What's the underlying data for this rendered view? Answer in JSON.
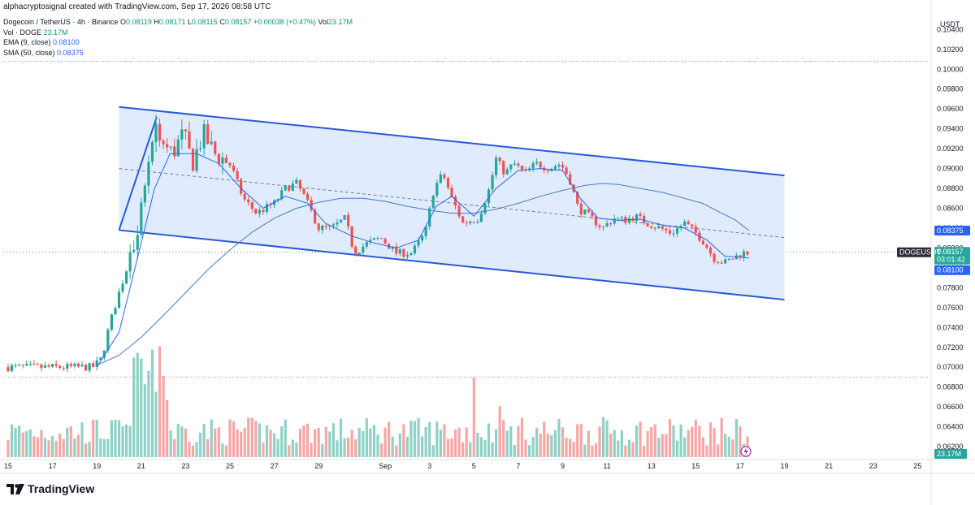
{
  "header": {
    "credit": "alphacryptosignal created with TradingView.com, Sep 17, 2026 08:58 UTC",
    "symbol": "Dogecoin / TetherUS · 4h · Binance",
    "o_label": "O",
    "o_value": "0.08119",
    "h_label": "H",
    "h_value": "0.08171",
    "l_label": "L",
    "l_value": "0.08115",
    "c_label": "C",
    "c_value": "0.08157",
    "change": "+0.00038 (+0.47%)",
    "vol_label": "Vol",
    "vol_value": "23.17M",
    "ind_vol_label": "Vol · DOGE",
    "ind_vol_value": "23.17M",
    "ema_label": "EMA (9, close)",
    "ema_value": "0.08100",
    "sma_label": "SMA (50, close)",
    "sma_value": "0.08375"
  },
  "currency": "USDT",
  "logo_text": "TradingView",
  "price_tags": {
    "sma": "0.08375",
    "symbol": "DOGEUSDT",
    "price": "0.08157",
    "countdown": "03:01:42",
    "ema": "0.08100",
    "volume": "23.17M"
  },
  "colors": {
    "up": "#26a69a",
    "down": "#ef5350",
    "vol_up": "#8ed1c6",
    "vol_down": "#f5a7a5",
    "channel_line": "#2959d9",
    "channel_fill": "#ddeafd",
    "ema": "#2962ff",
    "sma": "#4a78c6",
    "price_tag": "#26a69a",
    "ema_tag": "#2962ff",
    "sma_tag": "#2962ff"
  },
  "chart_data": {
    "type": "candlestick",
    "title": "Dogecoin / TetherUS · 4h · Binance",
    "y_ticks": [
      "0.06200",
      "0.06400",
      "0.06600",
      "0.06800",
      "0.07000",
      "0.07200",
      "0.07400",
      "0.07600",
      "0.07800",
      "0.08000",
      "0.08200",
      "0.08400",
      "0.08600",
      "0.08800",
      "0.09000",
      "0.09200",
      "0.09400",
      "0.09600",
      "0.09800",
      "0.10000",
      "0.10200",
      "0.10400"
    ],
    "ylim": [
      0.0607,
      0.1055
    ],
    "x_ticks": [
      {
        "label": "15",
        "t": 0
      },
      {
        "label": "17",
        "t": 2
      },
      {
        "label": "19",
        "t": 4
      },
      {
        "label": "21",
        "t": 6
      },
      {
        "label": "23",
        "t": 8
      },
      {
        "label": "25",
        "t": 10
      },
      {
        "label": "27",
        "t": 12
      },
      {
        "label": "29",
        "t": 14
      },
      {
        "label": "Sep",
        "t": 17
      },
      {
        "label": "3",
        "t": 19
      },
      {
        "label": "5",
        "t": 21
      },
      {
        "label": "7",
        "t": 23
      },
      {
        "label": "9",
        "t": 25
      },
      {
        "label": "11",
        "t": 27
      },
      {
        "label": "13",
        "t": 29
      },
      {
        "label": "15",
        "t": 31
      },
      {
        "label": "17",
        "t": 33
      },
      {
        "label": "19",
        "t": 35
      },
      {
        "label": "21",
        "t": 37
      },
      {
        "label": "23",
        "t": 39
      },
      {
        "label": "25",
        "t": 41
      }
    ],
    "close_anchors": [
      [
        0,
        0.07
      ],
      [
        3.8,
        0.07
      ],
      [
        4.2,
        0.0708
      ],
      [
        4.6,
        0.0745
      ],
      [
        5.0,
        0.0775
      ],
      [
        5.5,
        0.081
      ],
      [
        6.0,
        0.086
      ],
      [
        6.4,
        0.092
      ],
      [
        6.7,
        0.0945
      ],
      [
        7.0,
        0.0925
      ],
      [
        7.4,
        0.0915
      ],
      [
        7.9,
        0.0935
      ],
      [
        8.3,
        0.0905
      ],
      [
        8.8,
        0.0935
      ],
      [
        9.3,
        0.0915
      ],
      [
        10.0,
        0.0905
      ],
      [
        10.6,
        0.087
      ],
      [
        11.2,
        0.0855
      ],
      [
        12.0,
        0.0865
      ],
      [
        12.5,
        0.088
      ],
      [
        13.0,
        0.0885
      ],
      [
        13.4,
        0.087
      ],
      [
        14.0,
        0.084
      ],
      [
        14.6,
        0.084
      ],
      [
        15.2,
        0.085
      ],
      [
        15.6,
        0.0815
      ],
      [
        16.2,
        0.0825
      ],
      [
        16.8,
        0.083
      ],
      [
        17.5,
        0.0815
      ],
      [
        18.2,
        0.0815
      ],
      [
        18.8,
        0.0835
      ],
      [
        19.2,
        0.088
      ],
      [
        19.6,
        0.0895
      ],
      [
        20.0,
        0.087
      ],
      [
        20.5,
        0.0845
      ],
      [
        21.2,
        0.085
      ],
      [
        21.7,
        0.088
      ],
      [
        22.0,
        0.091
      ],
      [
        22.4,
        0.0895
      ],
      [
        22.8,
        0.0905
      ],
      [
        23.3,
        0.0895
      ],
      [
        23.8,
        0.0905
      ],
      [
        24.4,
        0.09
      ],
      [
        24.9,
        0.0905
      ],
      [
        25.3,
        0.089
      ],
      [
        25.7,
        0.086
      ],
      [
        26.3,
        0.085
      ],
      [
        26.8,
        0.084
      ],
      [
        27.3,
        0.085
      ],
      [
        27.8,
        0.0848
      ],
      [
        28.3,
        0.0852
      ],
      [
        28.8,
        0.0845
      ],
      [
        29.4,
        0.084
      ],
      [
        29.9,
        0.0835
      ],
      [
        30.5,
        0.0845
      ],
      [
        31.0,
        0.0835
      ],
      [
        31.4,
        0.0825
      ],
      [
        31.8,
        0.081
      ],
      [
        32.3,
        0.0805
      ],
      [
        32.7,
        0.081
      ],
      [
        33.1,
        0.0815
      ],
      [
        33.4,
        0.08157
      ]
    ],
    "ema": [
      [
        4.0,
        0.07
      ],
      [
        5.0,
        0.0735
      ],
      [
        6.0,
        0.0825
      ],
      [
        6.6,
        0.088
      ],
      [
        7.3,
        0.0915
      ],
      [
        8.5,
        0.0915
      ],
      [
        9.5,
        0.0905
      ],
      [
        10.5,
        0.088
      ],
      [
        11.5,
        0.086
      ],
      [
        12.5,
        0.0872
      ],
      [
        13.5,
        0.0865
      ],
      [
        14.3,
        0.0845
      ],
      [
        15.5,
        0.0832
      ],
      [
        16.5,
        0.0825
      ],
      [
        17.5,
        0.082
      ],
      [
        18.5,
        0.0828
      ],
      [
        19.3,
        0.0862
      ],
      [
        20.0,
        0.0872
      ],
      [
        21.0,
        0.0852
      ],
      [
        22.0,
        0.088
      ],
      [
        23.0,
        0.0898
      ],
      [
        24.0,
        0.09
      ],
      [
        25.0,
        0.0898
      ],
      [
        25.8,
        0.087
      ],
      [
        26.6,
        0.085
      ],
      [
        27.5,
        0.0848
      ],
      [
        28.5,
        0.0849
      ],
      [
        29.5,
        0.0843
      ],
      [
        30.5,
        0.084
      ],
      [
        31.5,
        0.0828
      ],
      [
        32.3,
        0.0812
      ],
      [
        33.4,
        0.081
      ]
    ],
    "sma": [
      [
        4.0,
        0.0702
      ],
      [
        5.0,
        0.0712
      ],
      [
        6.0,
        0.073
      ],
      [
        7.0,
        0.0752
      ],
      [
        8.0,
        0.0775
      ],
      [
        9.0,
        0.0798
      ],
      [
        10.0,
        0.0818
      ],
      [
        11.0,
        0.0836
      ],
      [
        12.0,
        0.085
      ],
      [
        13.0,
        0.086
      ],
      [
        14.0,
        0.0866
      ],
      [
        15.0,
        0.087
      ],
      [
        16.0,
        0.087
      ],
      [
        17.0,
        0.0867
      ],
      [
        18.0,
        0.0862
      ],
      [
        19.0,
        0.0858
      ],
      [
        20.0,
        0.0855
      ],
      [
        21.0,
        0.0855
      ],
      [
        22.0,
        0.0859
      ],
      [
        23.0,
        0.0865
      ],
      [
        24.0,
        0.0872
      ],
      [
        25.0,
        0.0878
      ],
      [
        26.0,
        0.0883
      ],
      [
        26.8,
        0.0885
      ],
      [
        27.5,
        0.0884
      ],
      [
        28.5,
        0.088
      ],
      [
        29.5,
        0.0876
      ],
      [
        30.5,
        0.087
      ],
      [
        31.3,
        0.0865
      ],
      [
        32.0,
        0.0857
      ],
      [
        32.8,
        0.0848
      ],
      [
        33.4,
        0.08375
      ]
    ],
    "channel": {
      "upper": [
        [
          5.0,
          0.0962
        ],
        [
          35.0,
          0.0893
        ]
      ],
      "lower": [
        [
          5.0,
          0.0838
        ],
        [
          35.0,
          0.0768
        ]
      ]
    },
    "reference_lines": [
      0.1008,
      0.069
    ],
    "volume_ylim": [
      0,
      40
    ]
  }
}
